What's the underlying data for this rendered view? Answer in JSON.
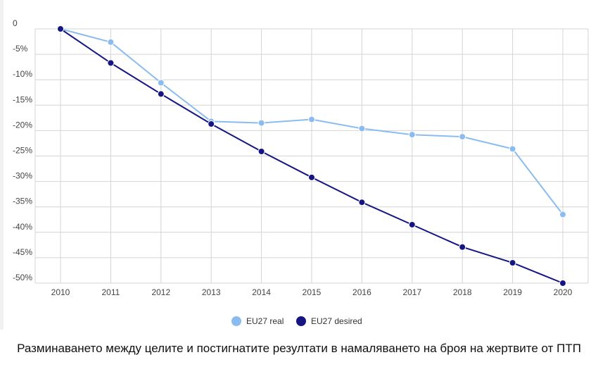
{
  "chart_data": {
    "type": "line",
    "x": [
      "2010",
      "2011",
      "2012",
      "2013",
      "2014",
      "2015",
      "2016",
      "2017",
      "2018",
      "2019",
      "2020"
    ],
    "y_ticks": [
      "0",
      "-5%",
      "-10%",
      "-15%",
      "-20%",
      "-25%",
      "-30%",
      "-35%",
      "-40%",
      "-45%",
      "-50%"
    ],
    "ylim": [
      -50,
      0
    ],
    "grid": true,
    "legend_position": "bottom",
    "series": [
      {
        "name": "EU27 real",
        "color": "#8bbcf0",
        "values": [
          0,
          -2.6,
          -10.6,
          -18.2,
          -18.5,
          -17.8,
          -19.6,
          -20.8,
          -21.2,
          -23.6,
          -36.5
        ]
      },
      {
        "name": "EU27 desired",
        "color": "#151584",
        "values": [
          0,
          -6.7,
          -12.8,
          -18.7,
          -24.1,
          -29.2,
          -34.1,
          -38.5,
          -42.9,
          -46.0,
          -50.0
        ]
      }
    ]
  },
  "caption": "Разминаването между целите и постигнатите резултати в намаляването на броя на жертвите от ПТП"
}
